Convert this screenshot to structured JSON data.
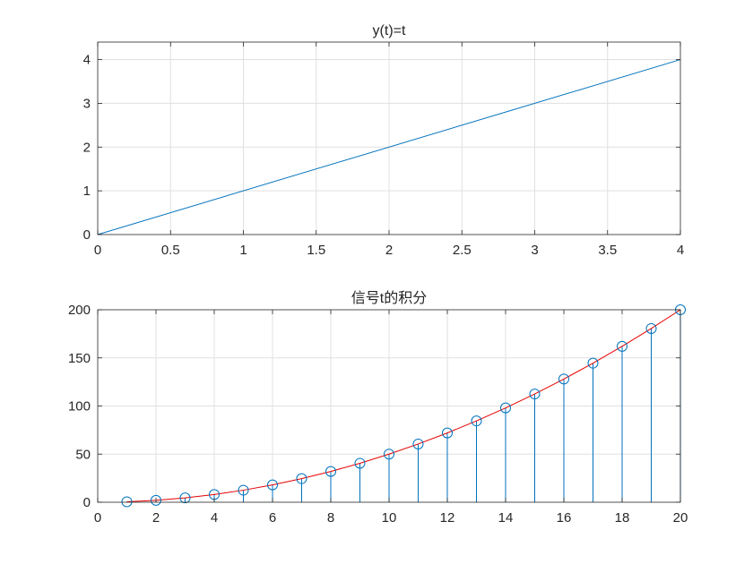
{
  "colors": {
    "background": "#ffffff",
    "grid": "#e0e0e0",
    "axis": "#262626",
    "series_blue": "#0072BD",
    "series_red": "#E60000"
  },
  "chart_data": [
    {
      "type": "line",
      "title": "y(t)=t",
      "xlabel": "",
      "ylabel": "",
      "xlim": [
        0,
        4
      ],
      "ylim": [
        0,
        4.4
      ],
      "xticks": [
        0,
        0.5,
        1,
        1.5,
        2,
        2.5,
        3,
        3.5,
        4
      ],
      "xtick_labels": [
        "0",
        "0.5",
        "1",
        "1.5",
        "2",
        "2.5",
        "3",
        "3.5",
        "4"
      ],
      "yticks": [
        0,
        1,
        2,
        3,
        4
      ],
      "ytick_labels": [
        "0",
        "1",
        "2",
        "3",
        "4"
      ],
      "grid": true,
      "series": [
        {
          "color": "#0072BD",
          "x": [
            0,
            4
          ],
          "y": [
            0,
            4
          ]
        }
      ]
    },
    {
      "type": "stem",
      "title": "信号t的积分",
      "xlabel": "",
      "ylabel": "",
      "xlim": [
        0,
        20
      ],
      "ylim": [
        0,
        200
      ],
      "xticks": [
        0,
        2,
        4,
        6,
        8,
        10,
        12,
        14,
        16,
        18,
        20
      ],
      "xtick_labels": [
        "0",
        "2",
        "4",
        "6",
        "8",
        "10",
        "12",
        "14",
        "16",
        "18",
        "20"
      ],
      "yticks": [
        0,
        50,
        100,
        150,
        200
      ],
      "ytick_labels": [
        "0",
        "50",
        "100",
        "150",
        "200"
      ],
      "grid": true,
      "series": [
        {
          "kind": "stem",
          "color": "#0072BD",
          "x": [
            1,
            2,
            3,
            4,
            5,
            6,
            7,
            8,
            9,
            10,
            11,
            12,
            13,
            14,
            15,
            16,
            17,
            18,
            19,
            20
          ],
          "y": [
            0.5,
            2,
            4.5,
            8,
            12.5,
            18,
            24.5,
            32,
            40.5,
            50,
            60.5,
            72,
            84.5,
            98,
            112.5,
            128,
            144.5,
            162,
            180.5,
            200
          ]
        },
        {
          "kind": "line",
          "color": "#E60000",
          "x": [
            1,
            2,
            3,
            4,
            5,
            6,
            7,
            8,
            9,
            10,
            11,
            12,
            13,
            14,
            15,
            16,
            17,
            18,
            19,
            20
          ],
          "y": [
            0.5,
            2,
            4.5,
            8,
            12.5,
            18,
            24.5,
            32,
            40.5,
            50,
            60.5,
            72,
            84.5,
            98,
            112.5,
            128,
            144.5,
            162,
            180.5,
            200
          ]
        }
      ]
    }
  ]
}
